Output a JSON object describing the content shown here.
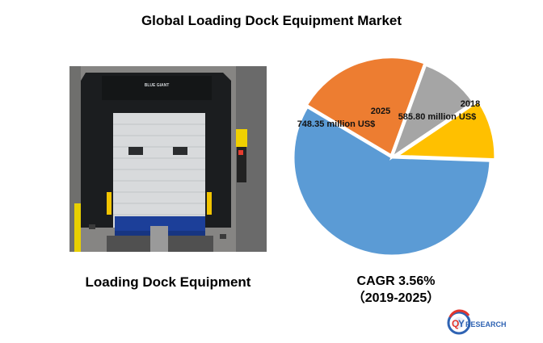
{
  "chart_data": {
    "type": "pie",
    "title": "Global Loading Dock Equipment Market",
    "series": [
      {
        "name": "",
        "values": [
          585.8,
          748.35
        ]
      }
    ],
    "slices": [
      {
        "value": 58,
        "color": "#5b9bd5",
        "explode": 0.0
      },
      {
        "value": 22,
        "color": "#ed7d31",
        "explode": 0.02
      },
      {
        "value": 10,
        "color": "#a5a5a5",
        "explode": 0.0
      },
      {
        "value": 10,
        "color": "#ffc000",
        "explode": 0.05
      }
    ],
    "start_angle_deg": 2,
    "annotations": [
      {
        "year": "2018",
        "value_text": "585.80 million US$"
      },
      {
        "year": "2025",
        "value_text": "748.35 million US$"
      }
    ]
  },
  "photo_caption": "Loading Dock Equipment",
  "cagr": {
    "line1": "CAGR 3.56%",
    "line2": "（2019-2025）"
  },
  "logo": {
    "text_q": "Q",
    "text_y": "Y",
    "text_rest": "RESEARCH"
  },
  "photo": {
    "door_brand": "BLUE GIANT"
  }
}
